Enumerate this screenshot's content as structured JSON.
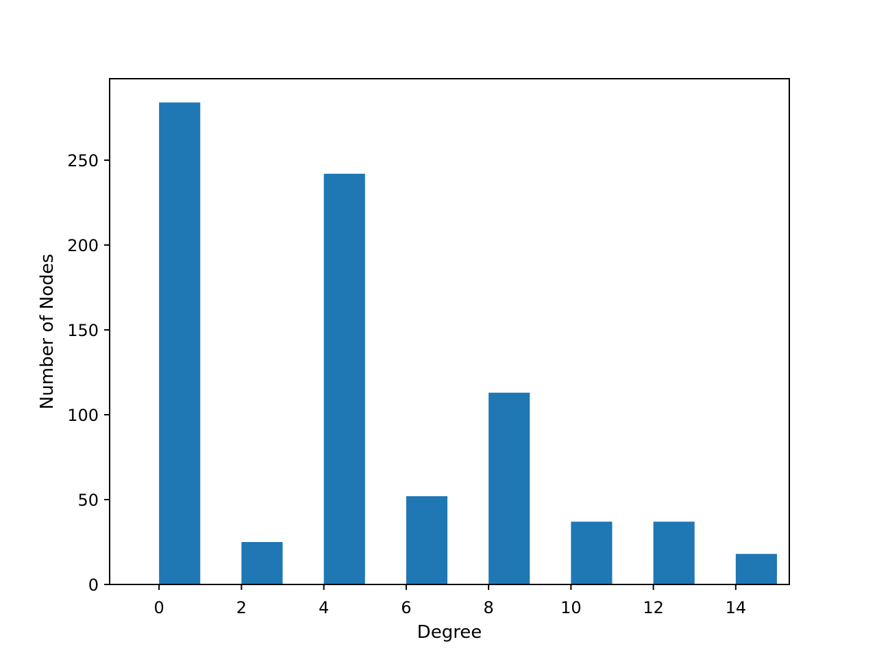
{
  "chart_data": {
    "type": "bar",
    "title": "",
    "xlabel": "Degree",
    "ylabel": "Number of Nodes",
    "bars": [
      {
        "x_start": 0,
        "x_end": 1,
        "value": 284
      },
      {
        "x_start": 2,
        "x_end": 3,
        "value": 25
      },
      {
        "x_start": 4,
        "x_end": 5,
        "value": 242
      },
      {
        "x_start": 6,
        "x_end": 7,
        "value": 52
      },
      {
        "x_start": 8,
        "x_end": 9,
        "value": 113
      },
      {
        "x_start": 10,
        "x_end": 11,
        "value": 37
      },
      {
        "x_start": 12,
        "x_end": 13,
        "value": 37
      },
      {
        "x_start": 14,
        "x_end": 15,
        "value": 18
      }
    ],
    "xlim": [
      -1.2,
      15.3
    ],
    "ylim": [
      0,
      298
    ],
    "xticks": [
      0,
      2,
      4,
      6,
      8,
      10,
      12,
      14
    ],
    "yticks": [
      0,
      50,
      100,
      150,
      200,
      250
    ],
    "grid": false,
    "legend": "none",
    "bar_color": "#1f77b4"
  }
}
